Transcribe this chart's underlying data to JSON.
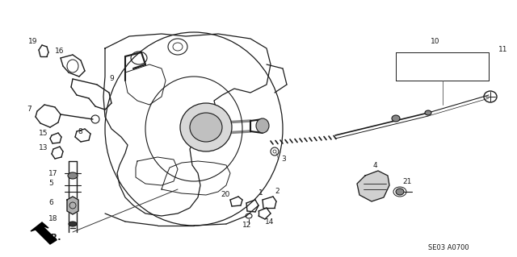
{
  "bg_color": "#ffffff",
  "line_color": "#1a1a1a",
  "fig_width": 6.4,
  "fig_height": 3.19,
  "dpi": 100,
  "diagram_code": "SE03 A0700"
}
